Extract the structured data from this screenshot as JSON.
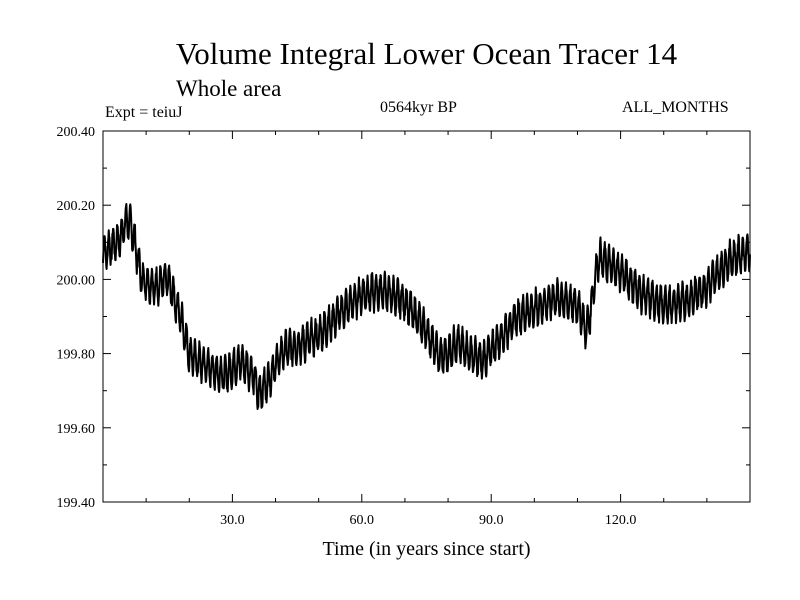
{
  "title": "Volume Integral Lower Ocean Tracer 14",
  "subtitle": "Whole area",
  "experiment": "Expt = teiuJ",
  "period": "0564kyr BP",
  "months": "ALL_MONTHS",
  "chart_data": {
    "type": "line",
    "title": "Volume Integral Lower Ocean Tracer 14",
    "xlabel": "Time (in years since start)",
    "ylabel": "",
    "xlim": [
      0,
      150
    ],
    "ylim": [
      199.4,
      200.4
    ],
    "xticks": [
      30,
      60,
      90,
      120
    ],
    "xtick_labels": [
      "30.0",
      "60.0",
      "90.0",
      "120.0"
    ],
    "yticks": [
      199.4,
      199.6,
      199.8,
      200.0,
      200.2,
      200.4
    ],
    "ytick_labels": [
      "199.40",
      "199.60",
      "199.80",
      "200.00",
      "200.20",
      "200.40"
    ],
    "sampling": "monthly (approximate trend with ~1-year oscillation)",
    "oscillation_amplitude": 0.045,
    "trend": {
      "x": [
        0,
        2,
        4,
        5,
        6,
        7,
        9,
        12,
        15,
        18,
        20,
        22,
        25,
        28,
        32,
        35,
        36,
        38,
        40,
        42,
        45,
        50,
        55,
        60,
        65,
        70,
        75,
        78,
        80,
        82,
        85,
        88,
        92,
        96,
        100,
        105,
        110,
        111,
        112,
        113,
        114,
        115,
        116,
        120,
        125,
        130,
        135,
        140,
        145,
        150
      ],
      "y": [
        200.07,
        200.09,
        200.11,
        200.15,
        200.16,
        200.12,
        200.0,
        199.98,
        200.0,
        199.9,
        199.8,
        199.78,
        199.76,
        199.74,
        199.78,
        199.74,
        199.69,
        199.72,
        199.77,
        199.81,
        199.82,
        199.85,
        199.91,
        199.96,
        199.97,
        199.94,
        199.86,
        199.79,
        199.8,
        199.83,
        199.8,
        199.78,
        199.84,
        199.9,
        199.92,
        199.95,
        199.93,
        199.9,
        199.86,
        199.91,
        200.0,
        200.06,
        200.05,
        200.02,
        199.96,
        199.93,
        199.94,
        199.98,
        200.05,
        200.08
      ]
    }
  }
}
